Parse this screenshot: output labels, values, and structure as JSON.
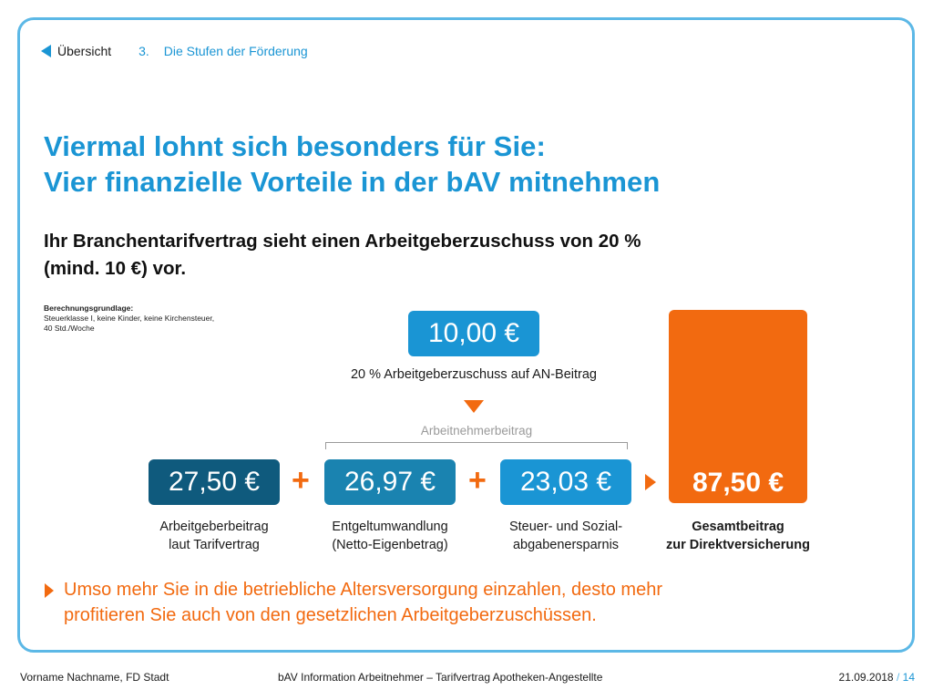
{
  "nav": {
    "back_label": "Übersicht",
    "crumb_number": "3.",
    "crumb_label": "Die Stufen der Förderung"
  },
  "title": {
    "line1": "Viermal lohnt sich besonders für Sie:",
    "line2": "Vier finanzielle Vorteile in der bAV mitnehmen"
  },
  "subtitle": {
    "line1": "Ihr Branchentarifvertrag sieht einen Arbeitgeberzuschuss von 20 %",
    "line2": "(mind. 10 €) vor."
  },
  "basis": {
    "heading": "Berechnungsgrundlage:",
    "line1": "Steuerklasse I, keine Kinder, keine Kirchensteuer,",
    "line2": "40 Std./Woche"
  },
  "top_box": {
    "value": "10,00 €",
    "caption": "20 % Arbeitgeberzuschuss auf AN-Beitrag"
  },
  "bracket_label": "Arbeitnehmerbeitrag",
  "components": [
    {
      "value": "27,50 €",
      "caption_line1": "Arbeitgeberbeitrag",
      "caption_line2": "laut Tarifvertrag"
    },
    {
      "value": "26,97 €",
      "caption_line1": "Entgeltumwandlung",
      "caption_line2": "(Netto-Eigenbetrag)"
    },
    {
      "value": "23,03 €",
      "caption_line1": "Steuer- und Sozial-",
      "caption_line2": "abgabenersparnis"
    }
  ],
  "operators": {
    "plus": "+"
  },
  "total": {
    "value": "87,50 €",
    "caption_line1": "Gesamtbeitrag",
    "caption_line2": "zur Direktversicherung"
  },
  "bullet": {
    "line1": "Umso mehr Sie in die betriebliche Altersversorgung einzahlen, desto mehr",
    "line2": "profitieren Sie auch von den gesetzlichen Arbeitgeberzuschüssen."
  },
  "footer": {
    "author": "Vorname Nachname, FD Stadt",
    "center": "bAV Information Arbeitnehmer – Tarifvertrag Apotheken-Angestellte",
    "date": "21.09.2018",
    "separator": "/",
    "page": "14"
  },
  "colors": {
    "blue": "#1a95d4",
    "dark_blue": "#0f5a7d",
    "mid_blue": "#1a83b0",
    "orange": "#f26a10",
    "frame": "#5cb8e6"
  }
}
